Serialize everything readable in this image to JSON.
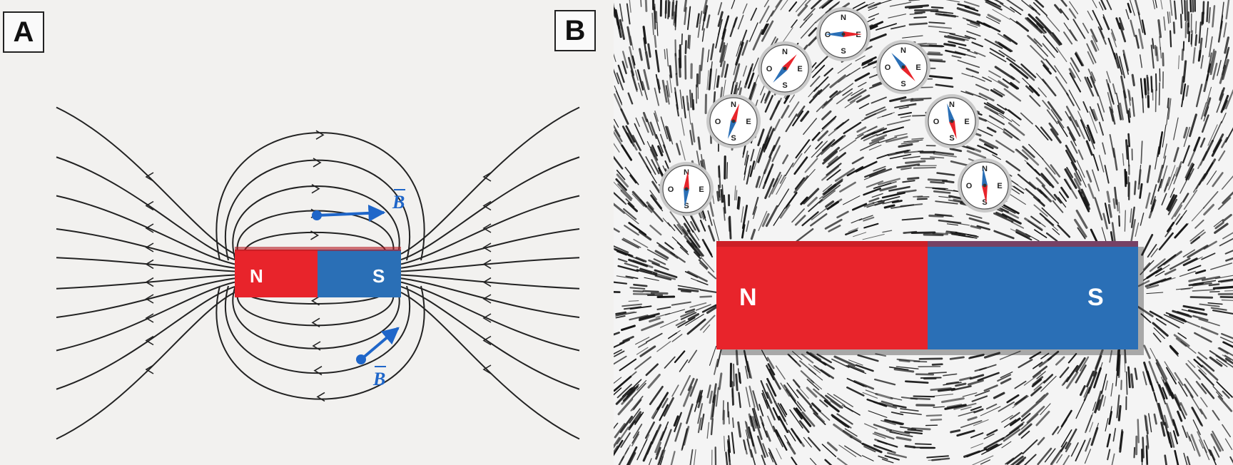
{
  "panels": {
    "a": {
      "label": "A"
    },
    "b": {
      "label": "B"
    }
  },
  "diagram_a": {
    "magnet": {
      "north_label": "N",
      "south_label": "S"
    },
    "vectors": [
      {
        "label": "B",
        "position": "above magnet, pointing right"
      },
      {
        "label": "B",
        "position": "below magnet, pointing up-right"
      }
    ]
  },
  "photo_b": {
    "magnet": {
      "north_label": "N",
      "south_label": "S"
    },
    "compass_letters": {
      "north": "N",
      "south": "S",
      "east": "E",
      "west": "O"
    },
    "compasses": [
      {
        "needle_angle": 5
      },
      {
        "needle_angle": 18
      },
      {
        "needle_angle": 40
      },
      {
        "needle_angle": 90
      },
      {
        "needle_angle": 140
      },
      {
        "needle_angle": 165
      },
      {
        "needle_angle": 175
      }
    ]
  },
  "colors": {
    "north": "#e8242b",
    "south": "#2a6fb6",
    "vector": "#1f66c9",
    "line": "#222222"
  }
}
